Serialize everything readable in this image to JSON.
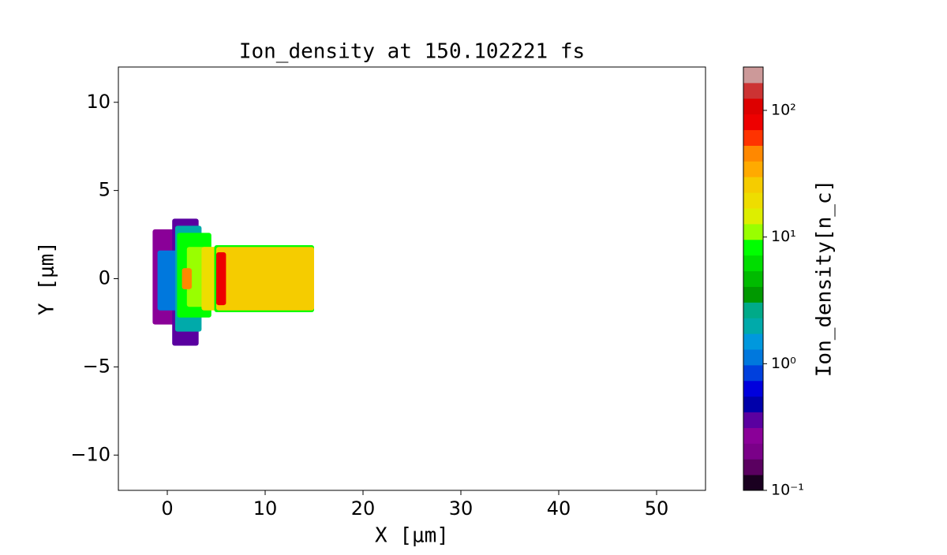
{
  "chart_data": {
    "type": "heatmap",
    "title": "Ion_density at 150.102221 fs",
    "x_label": "X [μm]",
    "y_label": "Y [μm]",
    "colorbar_label": "Ion_density[n_c]",
    "xlim": [
      -5,
      55
    ],
    "ylim": [
      -12,
      12
    ],
    "xticks": [
      0,
      10,
      20,
      30,
      40,
      50
    ],
    "yticks": [
      {
        "value": -10,
        "label": "−10"
      },
      {
        "value": -5,
        "label": "−5"
      },
      0,
      5,
      10
    ],
    "clim": [
      0.1,
      220
    ],
    "color_scale": "log",
    "cticks": [
      {
        "value": 0.1,
        "label": "10⁻¹"
      },
      {
        "value": 1,
        "label": "10⁰"
      },
      {
        "value": 10,
        "label": "10¹"
      },
      {
        "value": 100,
        "label": "10²"
      }
    ],
    "colors": [
      "#1a0020",
      "#5a0060",
      "#7a0088",
      "#8a0098",
      "#5a00a0",
      "#0000aa",
      "#0000dd",
      "#0040dd",
      "#0078dd",
      "#0098dd",
      "#00aaaa",
      "#00aa88",
      "#009900",
      "#00bb00",
      "#00dd00",
      "#00ff00",
      "#99ff00",
      "#ddee00",
      "#eedd00",
      "#f5cc00",
      "#ffaa00",
      "#ff8800",
      "#ff3300",
      "#ee0000",
      "#dd0000",
      "#cc3333",
      "#cc9999"
    ],
    "regions": [
      {
        "x": [
          -1.5,
          0.8
        ],
        "y": [
          -2.6,
          2.8
        ],
        "value": 0.3
      },
      {
        "x": [
          0.5,
          3.2
        ],
        "y": [
          -3.8,
          3.4
        ],
        "value": 0.4
      },
      {
        "x": [
          -1,
          1.5
        ],
        "y": [
          -1.8,
          1.6
        ],
        "value": 1.2
      },
      {
        "x": [
          0.8,
          3.5
        ],
        "y": [
          -3,
          3
        ],
        "value": 2
      },
      {
        "x": [
          1,
          4.5
        ],
        "y": [
          -2.2,
          2.6
        ],
        "value": 8
      },
      {
        "x": [
          2,
          5
        ],
        "y": [
          -1.6,
          1.8
        ],
        "value": 12
      },
      {
        "x": [
          1.5,
          2.5
        ],
        "y": [
          -0.6,
          0.6
        ],
        "value": 40
      },
      {
        "x": [
          3.5,
          5.2
        ],
        "y": [
          -1.8,
          1.8
        ],
        "value": 20
      },
      {
        "x": [
          4.8,
          15
        ],
        "y": [
          -1.9,
          1.9
        ],
        "value": 8
      },
      {
        "x": [
          5,
          15
        ],
        "y": [
          -1.8,
          1.8
        ],
        "value": 25
      },
      {
        "x": [
          5,
          6
        ],
        "y": [
          -1.5,
          1.5
        ],
        "value": 80
      }
    ]
  }
}
